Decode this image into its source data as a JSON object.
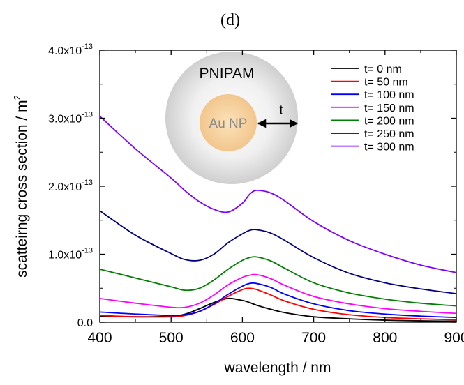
{
  "panel_label": "(d)",
  "chart_data": {
    "type": "line",
    "xlabel": "wavelength / nm",
    "ylabel": "scatteirng cross section / m",
    "ylabel_superscript": "2",
    "xlim": [
      400,
      900
    ],
    "ylim": [
      0,
      4e-13
    ],
    "x_ticks": [
      400,
      500,
      600,
      700,
      800,
      900
    ],
    "x_tick_labels": [
      "400",
      "500",
      "600",
      "700",
      "800",
      "900"
    ],
    "y_ticks": [
      0,
      1e-13,
      2e-13,
      3e-13,
      4e-13
    ],
    "y_tick_labels": [
      {
        "base": "0.0",
        "exp": ""
      },
      {
        "base": "1.0x10",
        "exp": "-13"
      },
      {
        "base": "2.0x10",
        "exp": "-13"
      },
      {
        "base": "3.0x10",
        "exp": "-13"
      },
      {
        "base": "4.0x10",
        "exp": "-13"
      }
    ],
    "grid": false,
    "legend_position": "top-right",
    "x": [
      400,
      450,
      500,
      520,
      540,
      560,
      580,
      600,
      610,
      620,
      640,
      660,
      700,
      750,
      800,
      850,
      900
    ],
    "series": [
      {
        "name": "t= 0 nm",
        "color": "#000000",
        "values": [
          9e-15,
          8e-15,
          9e-15,
          1.2e-14,
          2e-14,
          2.9e-14,
          3.5e-14,
          3.2e-14,
          2.9e-14,
          2.5e-14,
          1.9e-14,
          1.4e-14,
          8e-15,
          5e-15,
          3e-15,
          2e-15,
          1.5e-15
        ]
      },
      {
        "name": "t= 50 nm",
        "color": "#ff0000",
        "values": [
          1e-14,
          8e-15,
          8e-15,
          1e-14,
          1.6e-14,
          2.6e-14,
          3.8e-14,
          4.8e-14,
          5e-14,
          4.8e-14,
          4e-14,
          3.1e-14,
          1.9e-14,
          1.1e-14,
          7e-15,
          5e-15,
          3.5e-15
        ]
      },
      {
        "name": "t= 100 nm",
        "color": "#0000ff",
        "values": [
          1.5e-14,
          1.2e-14,
          1e-14,
          1.1e-14,
          1.6e-14,
          2.7e-14,
          4.1e-14,
          5.3e-14,
          5.7e-14,
          5.7e-14,
          5.1e-14,
          4.1e-14,
          2.7e-14,
          1.7e-14,
          1.2e-14,
          9e-15,
          7e-15
        ]
      },
      {
        "name": "t= 150 nm",
        "color": "#ff00ff",
        "values": [
          3.5e-14,
          2.8e-14,
          2.2e-14,
          2.2e-14,
          2.8e-14,
          4e-14,
          5.5e-14,
          6.6e-14,
          6.9e-14,
          7e-14,
          6.4e-14,
          5.4e-14,
          3.8e-14,
          2.7e-14,
          2e-14,
          1.6e-14,
          1.3e-14
        ]
      },
      {
        "name": "t= 200 nm",
        "color": "#008000",
        "values": [
          7.8e-14,
          6.5e-14,
          5.2e-14,
          4.7e-14,
          5e-14,
          6.2e-14,
          7.8e-14,
          9.1e-14,
          9.5e-14,
          9.6e-14,
          9e-14,
          7.9e-14,
          5.8e-14,
          4.3e-14,
          3.4e-14,
          2.8e-14,
          2.4e-14
        ]
      },
      {
        "name": "t= 250 nm",
        "color": "#000080",
        "values": [
          1.64e-13,
          1.28e-13,
          1.01e-13,
          9.2e-14,
          9.1e-14,
          1e-13,
          1.17e-13,
          1.3e-13,
          1.35e-13,
          1.36e-13,
          1.31e-13,
          1.2e-13,
          9.5e-14,
          7.2e-14,
          5.8e-14,
          4.9e-14,
          4.2e-14
        ]
      },
      {
        "name": "t= 300 nm",
        "color": "#8000ff",
        "values": [
          3.03e-13,
          2.55e-13,
          2.12e-13,
          1.93e-13,
          1.77e-13,
          1.66e-13,
          1.62e-13,
          1.75e-13,
          1.88e-13,
          1.94e-13,
          1.9e-13,
          1.78e-13,
          1.48e-13,
          1.2e-13,
          1e-13,
          8.4e-14,
          7.3e-14
        ]
      }
    ],
    "inset": {
      "outer_label": "PNIPAM",
      "inner_label": "Au NP",
      "arrow_label": "t"
    }
  }
}
